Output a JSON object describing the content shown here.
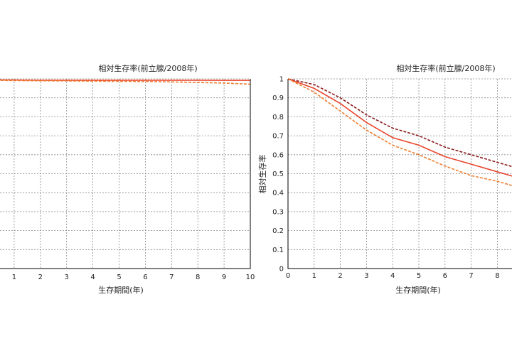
{
  "chart_data": [
    {
      "type": "line",
      "title": "相対生存率(前立腺/2008年)",
      "xlabel": "生存期間(年)",
      "ylabel": "",
      "x": [
        0,
        1,
        2,
        3,
        4,
        5,
        6,
        7,
        8,
        9,
        10
      ],
      "x_ticks": [
        "1",
        "2",
        "3",
        "4",
        "5",
        "6",
        "7",
        "8",
        "9",
        "10"
      ],
      "xlim": [
        0,
        10
      ],
      "ylim": [
        0,
        1
      ],
      "grid": true,
      "series": [
        {
          "style": "solid",
          "color": "#e8452c",
          "values": [
            0.995,
            0.994,
            0.993,
            0.993,
            0.993,
            0.993,
            0.993,
            0.993,
            0.993,
            0.992,
            0.992
          ]
        },
        {
          "style": "dashed",
          "color": "#f07d2e",
          "values": [
            0.993,
            0.991,
            0.99,
            0.989,
            0.988,
            0.987,
            0.986,
            0.984,
            0.981,
            0.978,
            0.972
          ]
        }
      ]
    },
    {
      "type": "line",
      "title": "相対生存率(前立腺/2008年)",
      "xlabel": "生存期間(年)",
      "ylabel": "相対生存率",
      "x": [
        0,
        1,
        2,
        3,
        4,
        5,
        6,
        7,
        8,
        9
      ],
      "x_ticks": [
        "0",
        "1",
        "2",
        "3",
        "4",
        "5",
        "6",
        "7",
        "8"
      ],
      "y_ticks": [
        "0",
        "0.1",
        "0.2",
        "0.3",
        "0.4",
        "0.5",
        "0.6",
        "0.7",
        "0.8",
        "0.9",
        "1"
      ],
      "xlim": [
        0,
        8.6
      ],
      "ylim": [
        0,
        1
      ],
      "grid": true,
      "series": [
        {
          "style": "dashed",
          "color": "#8b1a1a",
          "values": [
            1.0,
            0.97,
            0.9,
            0.81,
            0.74,
            0.7,
            0.64,
            0.6,
            0.56,
            0.52
          ]
        },
        {
          "style": "solid",
          "color": "#e8452c",
          "values": [
            1.0,
            0.95,
            0.87,
            0.77,
            0.69,
            0.65,
            0.59,
            0.55,
            0.51,
            0.47
          ]
        },
        {
          "style": "dashed",
          "color": "#f07d2e",
          "values": [
            1.0,
            0.93,
            0.83,
            0.73,
            0.65,
            0.6,
            0.54,
            0.49,
            0.46,
            0.42
          ]
        }
      ]
    }
  ]
}
